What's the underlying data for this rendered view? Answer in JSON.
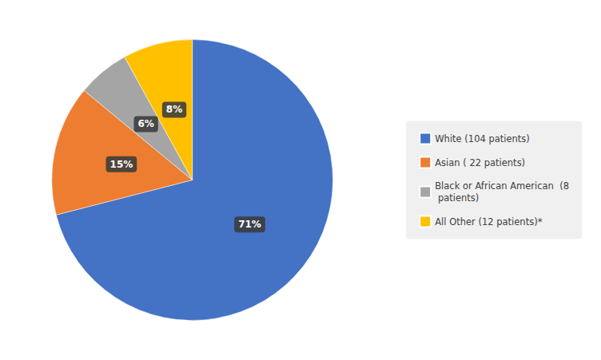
{
  "chart_data": {
    "type": "pie",
    "categories": [
      "White (104 patients)",
      "Asian ( 22 patients)",
      "Black or African American  (8\n patients)",
      "All Other (12 patients)*"
    ],
    "values": [
      71,
      15,
      6,
      8
    ],
    "value_labels": [
      "71%",
      "15%",
      "6%",
      "8%"
    ],
    "colors": [
      "#4472C4",
      "#ED7D31",
      "#A5A5A5",
      "#FFC000"
    ],
    "data_labels": true,
    "legend": "right"
  }
}
